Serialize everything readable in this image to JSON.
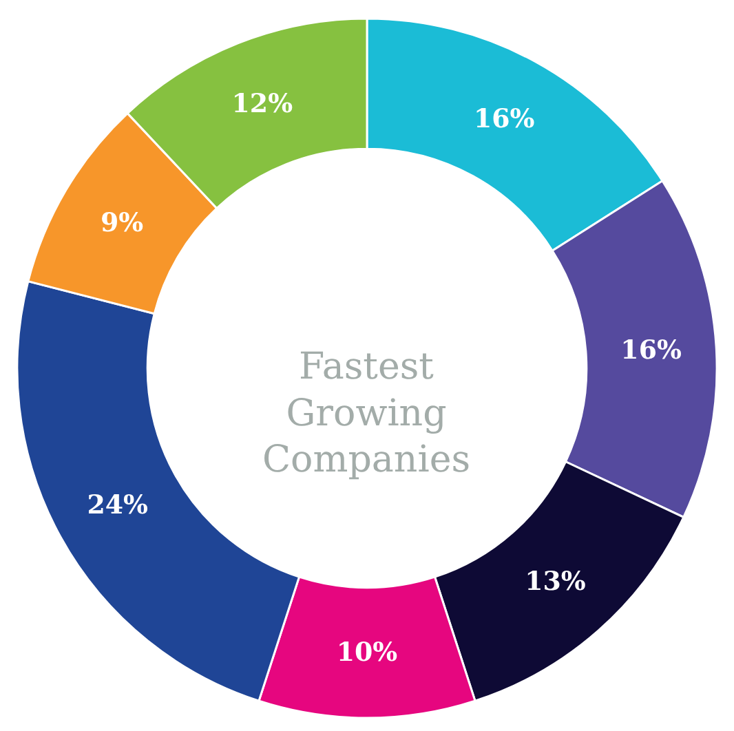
{
  "chart_data": {
    "type": "donut",
    "title": "Fastest Growing Companies",
    "categories": [
      null,
      null,
      null,
      null,
      null,
      null,
      null
    ],
    "values": [
      16,
      16,
      13,
      10,
      24,
      9,
      12
    ],
    "value_labels": [
      "16%",
      "16%",
      "13%",
      "10%",
      "24%",
      "9%",
      "12%"
    ],
    "colors": [
      "#1bbcd6",
      "#554a9e",
      "#0e0a35",
      "#e6067f",
      "#1f4596",
      "#f7962a",
      "#86c140"
    ],
    "legend": false
  }
}
